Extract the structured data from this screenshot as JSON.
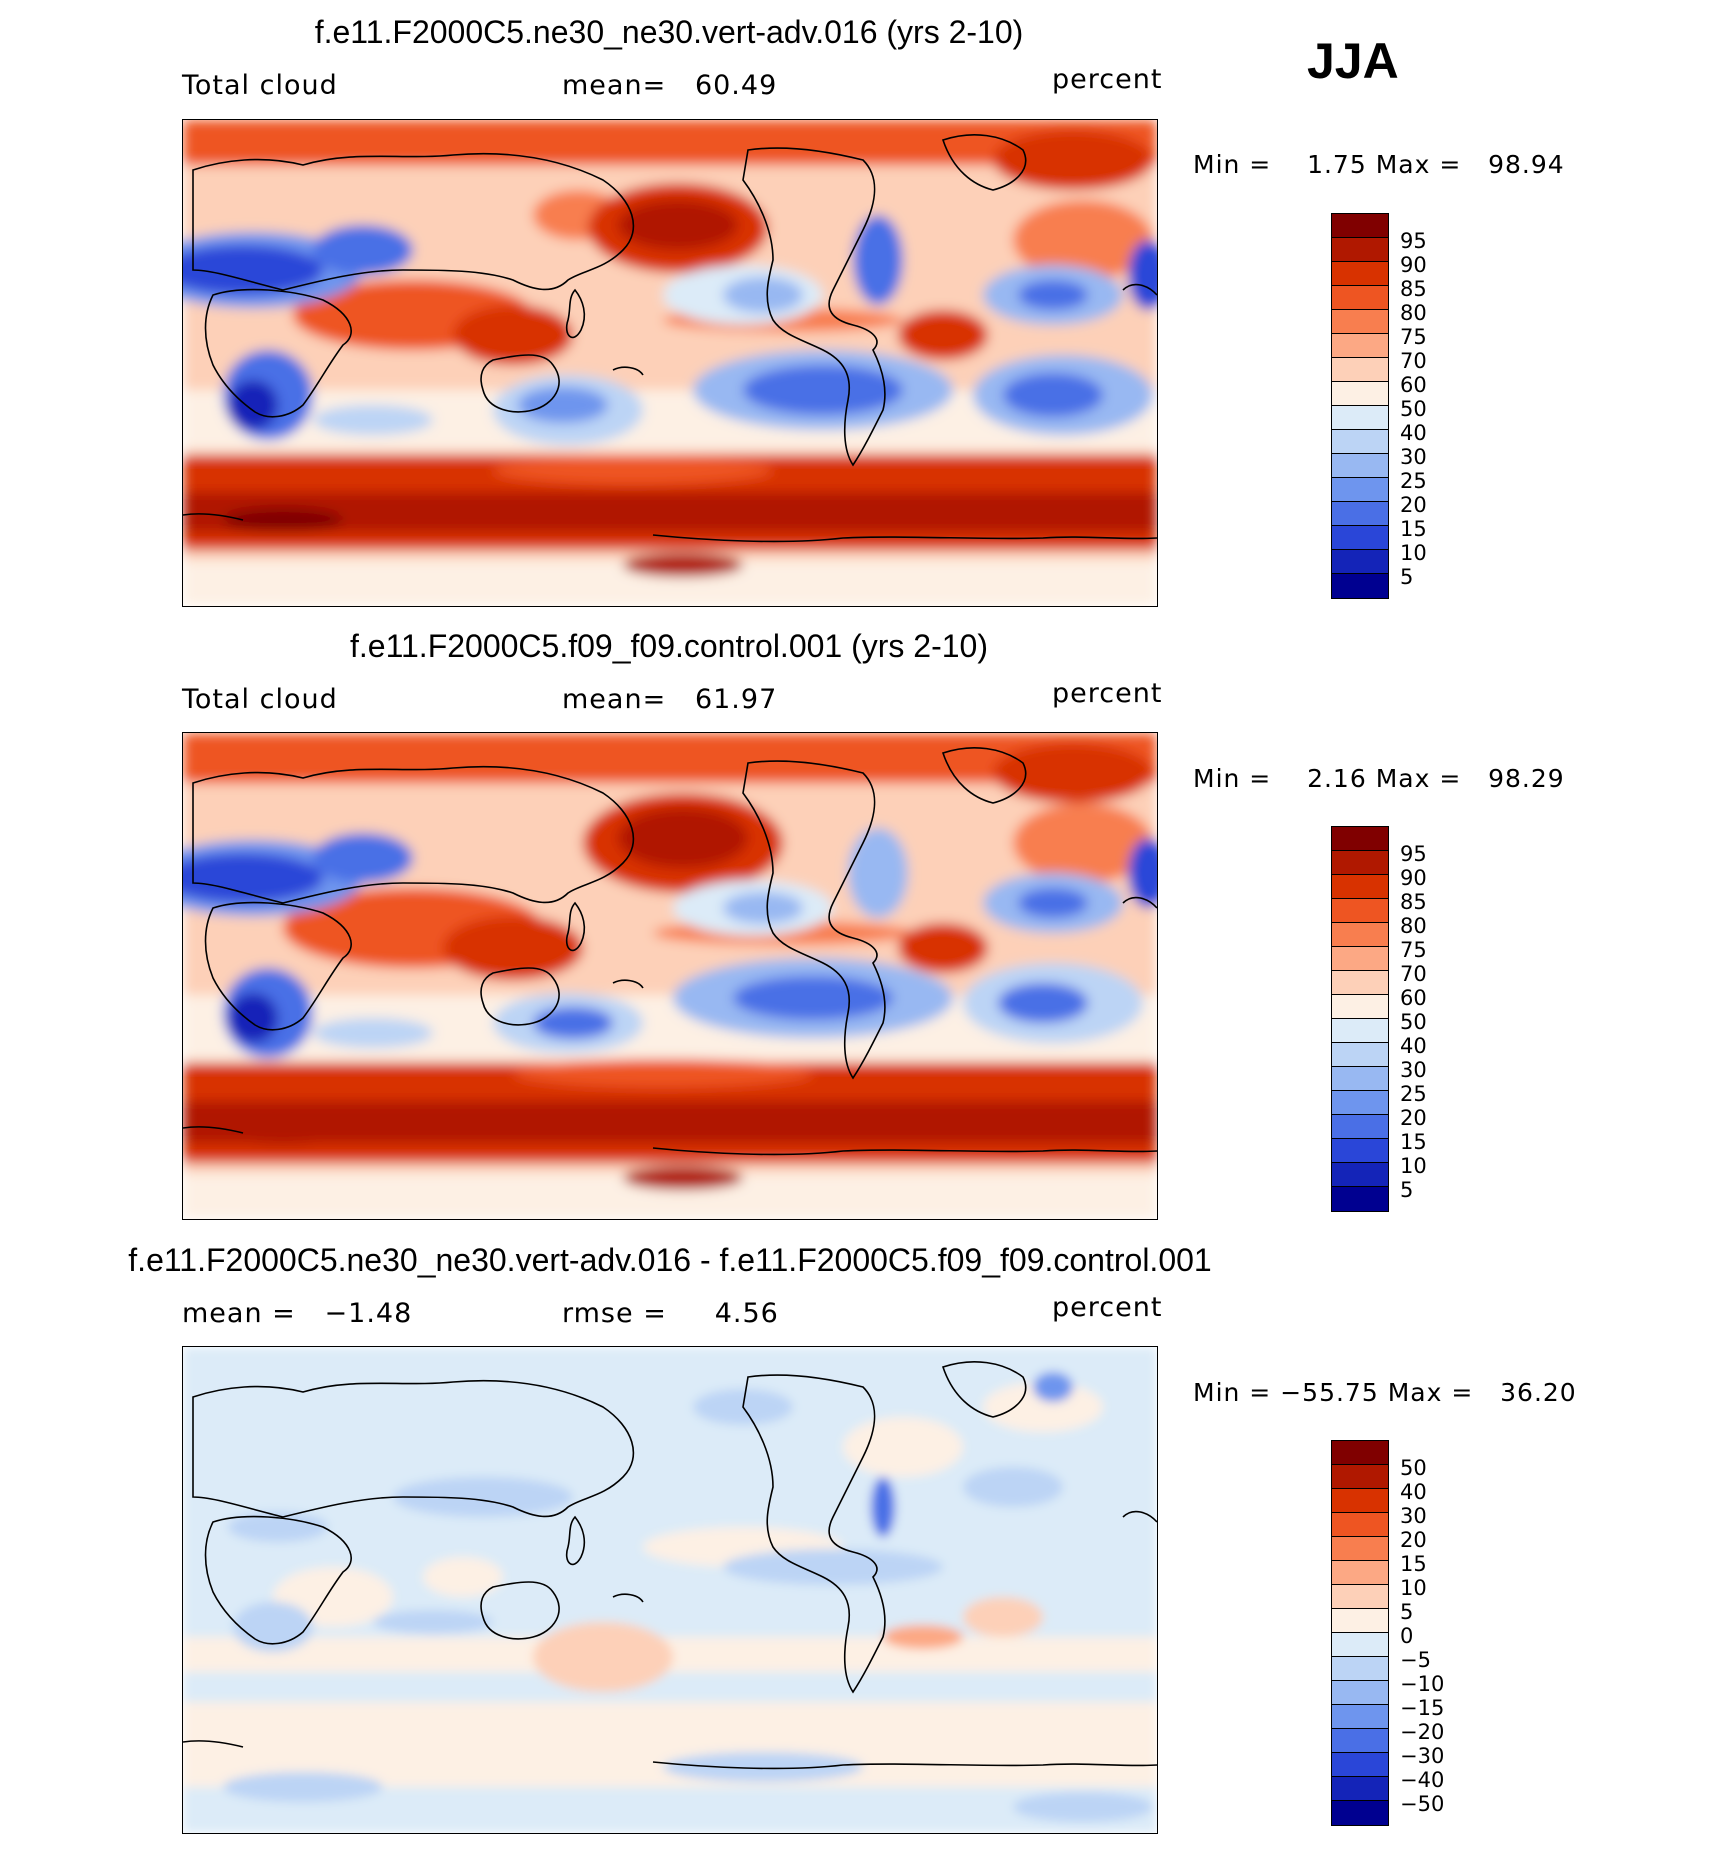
{
  "season": "JJA",
  "panels": [
    {
      "title": "f.e11.F2000C5.ne30_ne30.vert-adv.016 (yrs 2-10)",
      "left_label": "Total cloud",
      "mean_label": "mean=",
      "mean_value": "60.49",
      "units": "percent",
      "min_label": "Min =",
      "min_value": "1.75",
      "max_label": "Max =",
      "max_value": "98.94"
    },
    {
      "title": "f.e11.F2000C5.f09_f09.control.001 (yrs 2-10)",
      "left_label": "Total cloud",
      "mean_label": "mean=",
      "mean_value": "61.97",
      "units": "percent",
      "min_label": "Min =",
      "min_value": "2.16",
      "max_label": "Max =",
      "max_value": "98.29"
    },
    {
      "title": "f.e11.F2000C5.ne30_ne30.vert-adv.016 - f.e11.F2000C5.f09_f09.control.001",
      "left_label": "mean =",
      "left_value": "−1.48",
      "mean_label": "rmse =",
      "mean_value": "4.56",
      "units": "percent",
      "min_label": "Min =",
      "min_value": "−55.75",
      "max_label": "Max =",
      "max_value": "36.20"
    }
  ],
  "colorbar_main": {
    "labels": [
      "95",
      "90",
      "85",
      "80",
      "75",
      "70",
      "60",
      "50",
      "40",
      "30",
      "25",
      "20",
      "15",
      "10",
      "5"
    ],
    "colors": [
      "#800000",
      "#b01800",
      "#d83200",
      "#ee5522",
      "#f87e4f",
      "#fca884",
      "#fdd0b8",
      "#fdf0e4",
      "#dcebf8",
      "#bcd4f5",
      "#98b8f2",
      "#6e95ee",
      "#4a6fe6",
      "#2a46d8",
      "#1424b8",
      "#000090"
    ]
  },
  "colorbar_diff": {
    "labels": [
      "50",
      "40",
      "30",
      "20",
      "15",
      "10",
      "5",
      "0",
      "−5",
      "−10",
      "−15",
      "−20",
      "−30",
      "−40",
      "−50"
    ],
    "colors": [
      "#800000",
      "#b01800",
      "#d83200",
      "#ee5522",
      "#f87e4f",
      "#fca884",
      "#fdd0b8",
      "#fdf0e4",
      "#dcebf8",
      "#bcd4f5",
      "#98b8f2",
      "#6e95ee",
      "#4a6fe6",
      "#2a46d8",
      "#1424b8",
      "#000090"
    ]
  }
}
